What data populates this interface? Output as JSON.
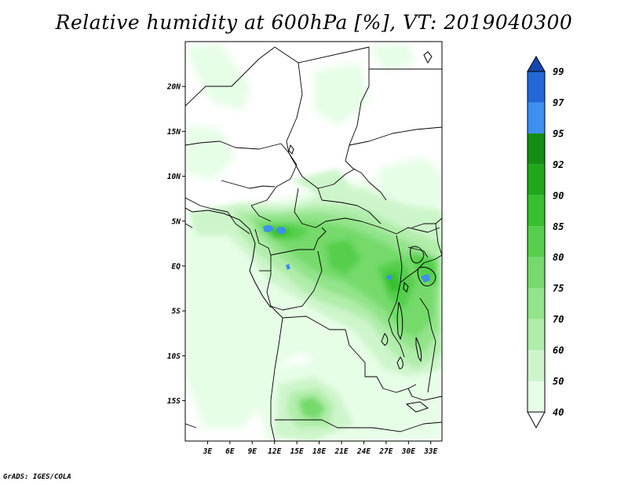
{
  "title": "Relative humidity at 600hPa [%], VT: 2019040300",
  "credit": "GrADS: IGES/COLA",
  "map": {
    "lat_labels": [
      "20N",
      "15N",
      "10N",
      "5N",
      "EQ",
      "5S",
      "10S",
      "15S"
    ],
    "lon_labels": [
      "3E",
      "6E",
      "9E",
      "12E",
      "15E",
      "18E",
      "21E",
      "24E",
      "27E",
      "30E",
      "33E"
    ],
    "lon_range": [
      0,
      34.5
    ],
    "lat_range": [
      -19.5,
      25
    ]
  },
  "colorbar": {
    "levels": [
      "40",
      "50",
      "60",
      "70",
      "75",
      "80",
      "85",
      "90",
      "92",
      "95",
      "97",
      "99"
    ],
    "colors": [
      "#ffffff",
      "#e6fde6",
      "#cdf5cb",
      "#b0edaa",
      "#92e38a",
      "#74da6b",
      "#55cf4b",
      "#36c02d",
      "#1fa81a",
      "#138e12",
      "#3d8ff0",
      "#2467d8",
      "#1446b0"
    ]
  }
}
